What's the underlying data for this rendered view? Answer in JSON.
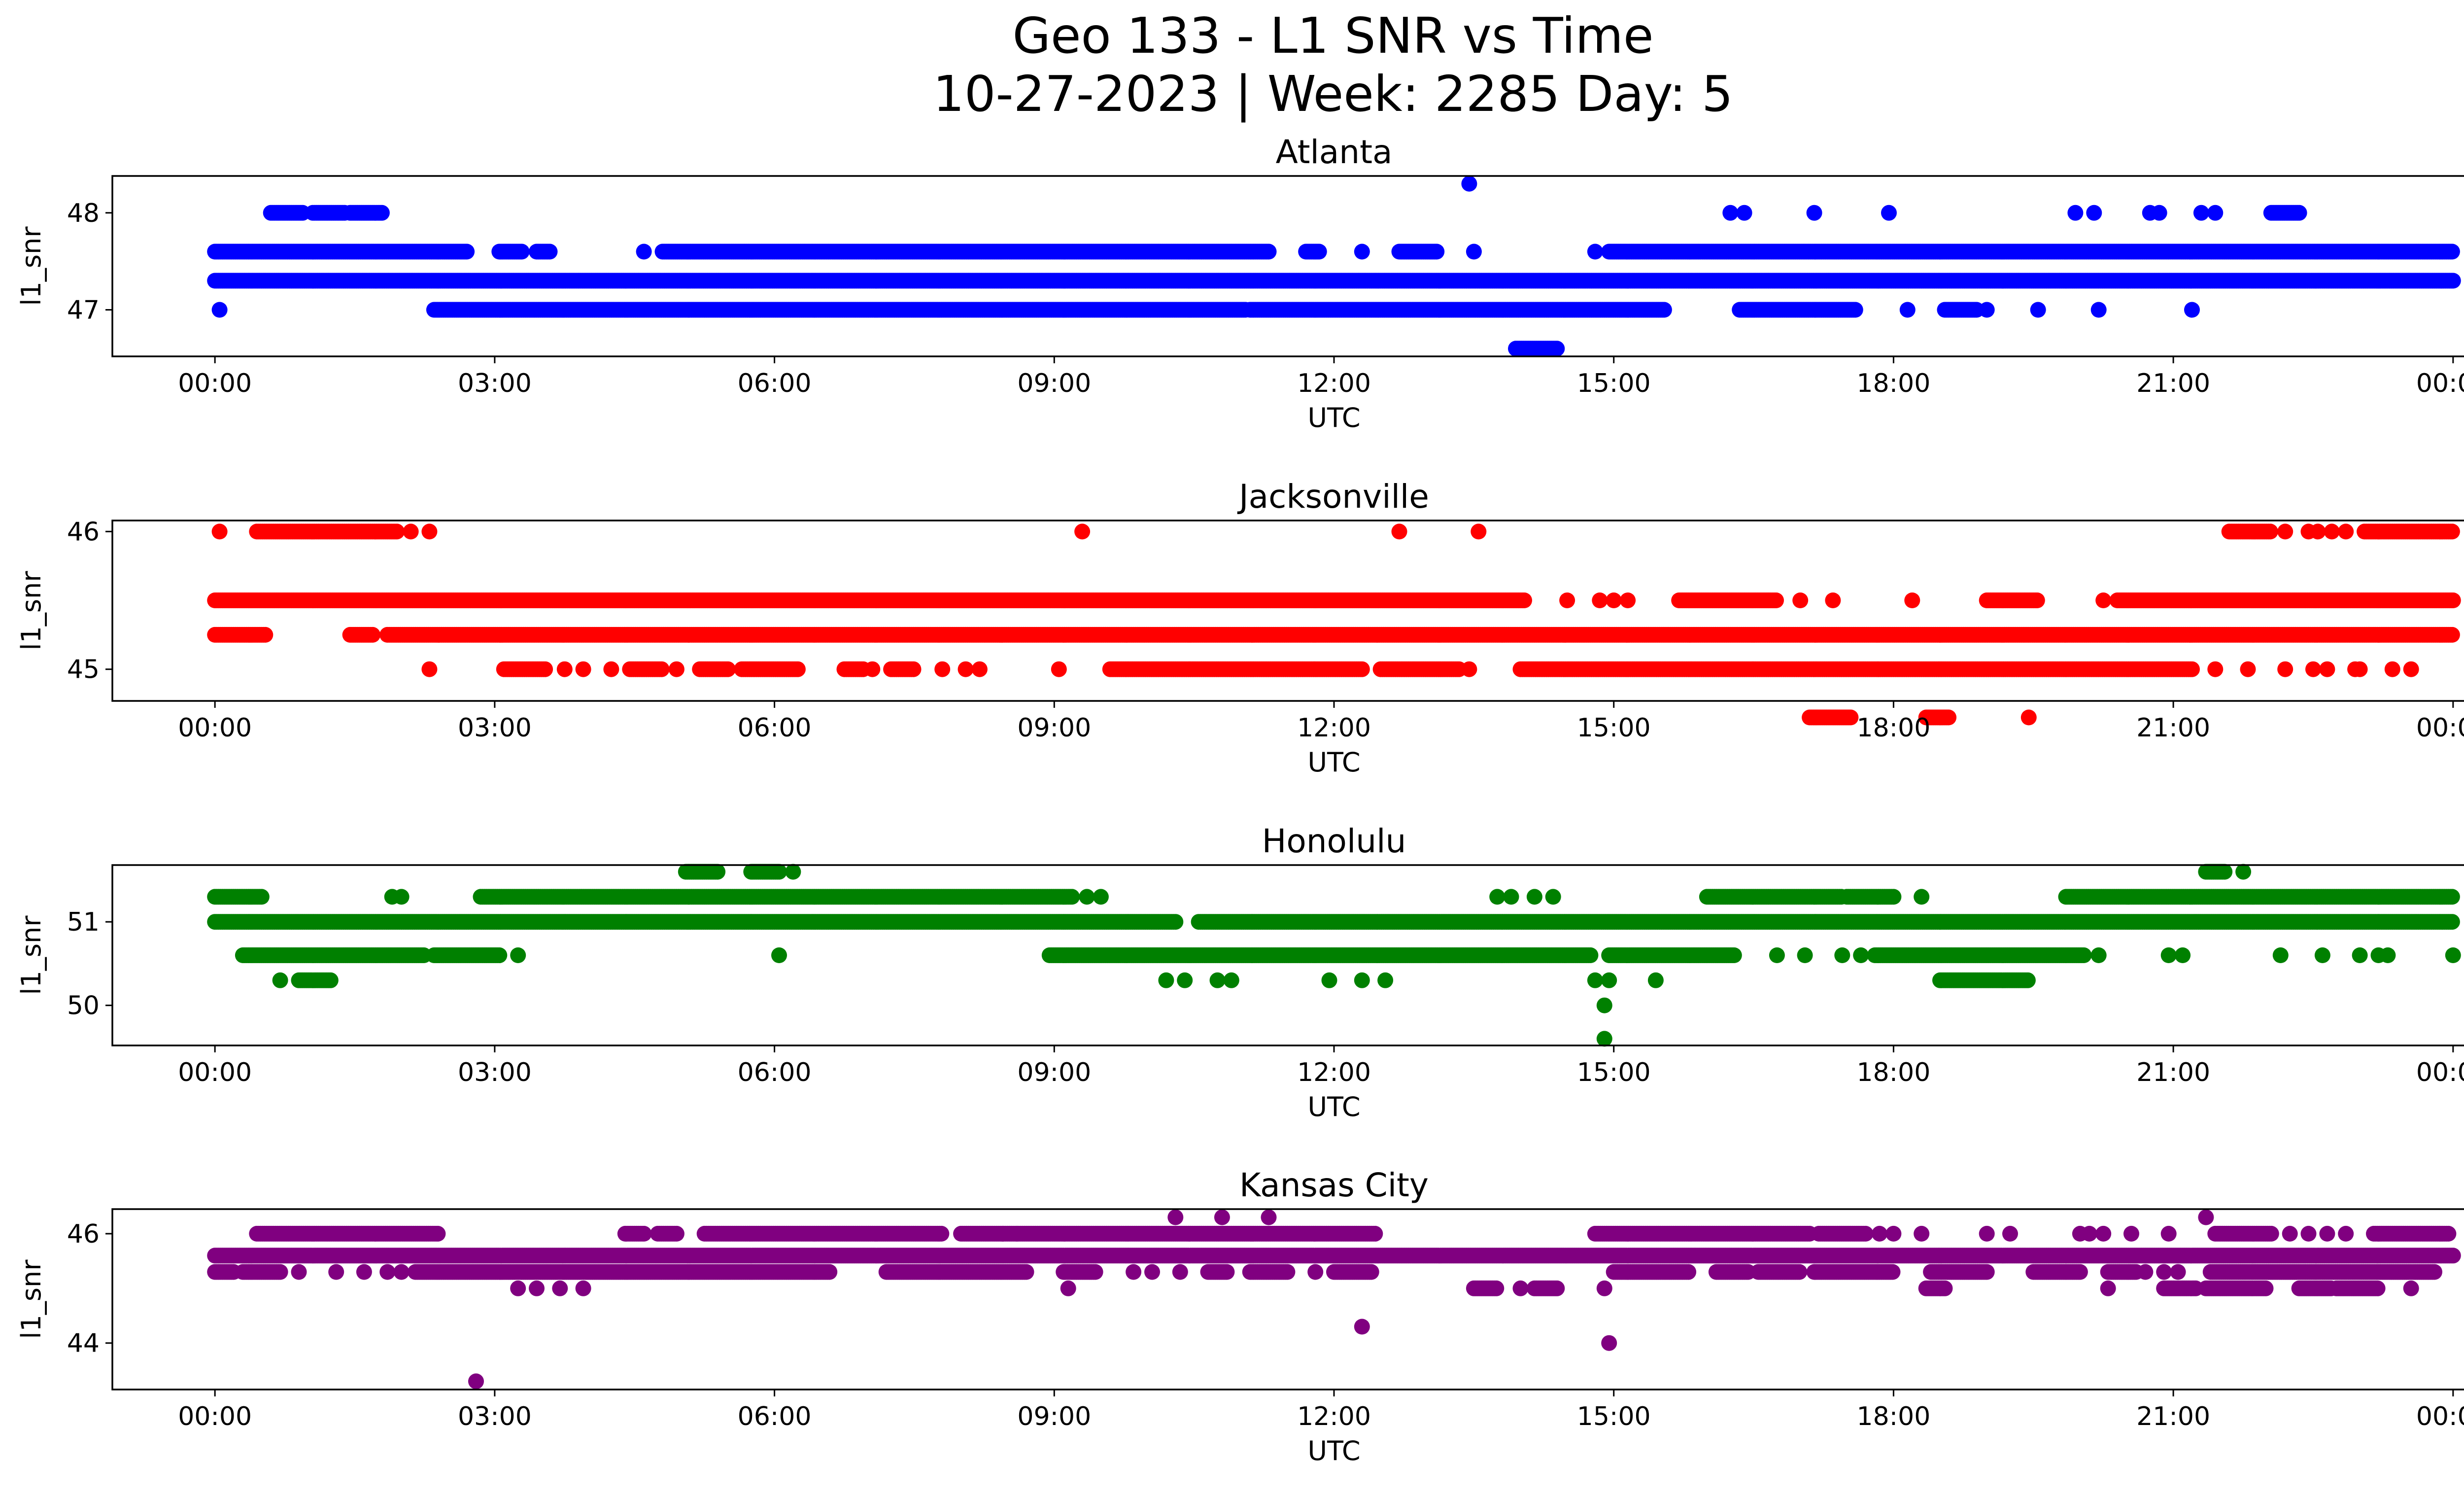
{
  "figure": {
    "title_line1": "Geo 133 - L1 SNR vs Time",
    "title_line2": "10-27-2023 | Week: 2285 Day: 5"
  },
  "chart_data": [
    {
      "type": "scatter",
      "title": "Atlanta",
      "xlabel": "UTC",
      "ylabel": "l1_snr",
      "color": "#0000ff",
      "xlim": [
        -1.1,
        25.1
      ],
      "ylim": [
        46.52,
        48.38
      ],
      "xticks": [
        0,
        3,
        6,
        9,
        12,
        15,
        18,
        21,
        24
      ],
      "xtick_labels": [
        "00:00",
        "03:00",
        "06:00",
        "09:00",
        "12:00",
        "15:00",
        "18:00",
        "21:00",
        "00:00"
      ],
      "yticks": [
        47,
        48
      ],
      "ytick_labels": [
        "47",
        "48"
      ],
      "series": [
        {
          "y": 47.3,
          "ranges": [
            [
              0.0,
              24.0
            ]
          ],
          "points": []
        },
        {
          "y": 47.6,
          "ranges": [
            [
              0.0,
              2.7
            ],
            [
              3.05,
              3.3
            ],
            [
              3.45,
              3.6
            ],
            [
              4.8,
              11.3
            ],
            [
              11.7,
              11.85
            ],
            [
              12.7,
              13.1
            ],
            [
              14.95,
              24.0
            ]
          ],
          "points": [
            4.6,
            12.3,
            13.5,
            14.8
          ]
        },
        {
          "y": 47.0,
          "ranges": [
            [
              2.35,
              11.05
            ],
            [
              11.1,
              15.55
            ],
            [
              16.35,
              17.6
            ],
            [
              18.55,
              18.9
            ]
          ],
          "points": [
            0.05,
            18.15,
            19.0,
            19.55,
            20.2,
            21.2
          ]
        },
        {
          "y": 48.0,
          "ranges": [
            [
              0.6,
              0.95
            ],
            [
              1.05,
              1.4
            ],
            [
              1.45,
              1.8
            ],
            [
              22.05,
              22.35
            ]
          ],
          "points": [
            16.25,
            16.4,
            17.15,
            17.95,
            19.95,
            20.15,
            20.75,
            20.85,
            21.3,
            21.45
          ]
        },
        {
          "y": 46.6,
          "ranges": [
            [
              13.95,
              14.4
            ]
          ],
          "points": []
        },
        {
          "y": 48.3,
          "ranges": [],
          "points": [
            13.45
          ]
        }
      ]
    },
    {
      "type": "scatter",
      "title": "Jacksonville",
      "xlabel": "UTC",
      "ylabel": "l1_snr",
      "color": "#ff0000",
      "xlim": [
        -1.1,
        25.1
      ],
      "ylim": [
        44.77,
        46.08
      ],
      "xticks": [
        0,
        3,
        6,
        9,
        12,
        15,
        18,
        21,
        24
      ],
      "xtick_labels": [
        "00:00",
        "03:00",
        "06:00",
        "09:00",
        "12:00",
        "15:00",
        "18:00",
        "21:00",
        "00:00"
      ],
      "yticks": [
        45,
        46
      ],
      "ytick_labels": [
        "45",
        "46"
      ],
      "series": [
        {
          "y": 45.5,
          "ranges": [
            [
              0.0,
              14.05
            ],
            [
              15.7,
              16.75
            ],
            [
              19.0,
              19.55
            ],
            [
              20.4,
              24.0
            ]
          ],
          "points": [
            14.5,
            14.85,
            15.0,
            15.15,
            17.0,
            17.35,
            18.2,
            20.25
          ]
        },
        {
          "y": 45.25,
          "ranges": [
            [
              0.0,
              0.55
            ],
            [
              1.45,
              1.7
            ],
            [
              1.85,
              24.0
            ]
          ],
          "points": []
        },
        {
          "y": 45.0,
          "ranges": [
            [
              3.1,
              3.55
            ],
            [
              4.45,
              4.8
            ],
            [
              5.2,
              5.5
            ],
            [
              5.65,
              6.25
            ],
            [
              6.75,
              6.95
            ],
            [
              7.25,
              7.5
            ],
            [
              9.6,
              12.3
            ],
            [
              12.5,
              13.35
            ],
            [
              14.0,
              21.2
            ]
          ],
          "points": [
            2.3,
            3.75,
            3.95,
            4.25,
            4.95,
            7.05,
            7.8,
            8.05,
            8.2,
            9.05,
            13.45,
            21.45,
            21.8,
            22.2,
            22.5,
            22.65,
            22.95,
            23.0,
            23.35,
            23.55
          ]
        },
        {
          "y": 46.0,
          "ranges": [
            [
              0.45,
              1.95
            ],
            [
              21.6,
              22.05
            ],
            [
              23.05,
              24.0
            ]
          ],
          "points": [
            0.05,
            2.1,
            2.3,
            9.3,
            12.7,
            13.55,
            22.2,
            22.45,
            22.55,
            22.7,
            22.85
          ]
        },
        {
          "y": 44.65,
          "ranges": [
            [
              17.1,
              17.55
            ],
            [
              18.35,
              18.6
            ]
          ],
          "points": [
            19.45
          ]
        }
      ]
    },
    {
      "type": "scatter",
      "title": "Honolulu",
      "xlabel": "UTC",
      "ylabel": "l1_snr",
      "color": "#008000",
      "xlim": [
        -1.1,
        25.1
      ],
      "ylim": [
        49.52,
        51.68
      ],
      "xticks": [
        0,
        3,
        6,
        9,
        12,
        15,
        18,
        21,
        24
      ],
      "xtick_labels": [
        "00:00",
        "03:00",
        "06:00",
        "09:00",
        "12:00",
        "15:00",
        "18:00",
        "21:00",
        "00:00"
      ],
      "yticks": [
        50,
        51
      ],
      "ytick_labels": [
        "50",
        "51"
      ],
      "series": [
        {
          "y": 51.0,
          "ranges": [
            [
              0.0,
              10.3
            ],
            [
              10.55,
              24.0
            ]
          ],
          "points": []
        },
        {
          "y": 51.3,
          "ranges": [
            [
              0.0,
              0.5
            ],
            [
              2.85,
              9.2
            ],
            [
              16.0,
              17.45
            ],
            [
              17.5,
              18.0
            ],
            [
              19.85,
              24.0
            ]
          ],
          "points": [
            1.9,
            2.0,
            9.35,
            9.5,
            13.75,
            13.9,
            14.15,
            14.35,
            18.3
          ]
        },
        {
          "y": 50.6,
          "ranges": [
            [
              0.3,
              2.25
            ],
            [
              2.35,
              3.05
            ],
            [
              8.95,
              14.75
            ],
            [
              14.95,
              16.3
            ],
            [
              17.8,
              20.05
            ]
          ],
          "points": [
            3.25,
            6.05,
            16.75,
            17.05,
            17.45,
            17.65,
            20.2,
            20.95,
            21.1,
            22.15,
            22.6,
            23.0,
            23.2,
            23.3,
            24.0
          ]
        },
        {
          "y": 50.3,
          "ranges": [
            [
              0.9,
              1.25
            ],
            [
              18.5,
              19.45
            ]
          ],
          "points": [
            0.7,
            10.2,
            10.4,
            10.75,
            10.9,
            11.95,
            12.3,
            12.55,
            14.8,
            14.95,
            15.45
          ]
        },
        {
          "y": 51.6,
          "ranges": [
            [
              5.05,
              5.4
            ],
            [
              5.75,
              6.05
            ],
            [
              21.35,
              21.55
            ]
          ],
          "points": [
            6.2,
            21.75
          ]
        },
        {
          "y": 50.0,
          "ranges": [],
          "points": [
            14.9
          ]
        },
        {
          "y": 49.6,
          "ranges": [],
          "points": [
            14.9
          ]
        }
      ]
    },
    {
      "type": "scatter",
      "title": "Kansas City",
      "xlabel": "UTC",
      "ylabel": "l1_snr",
      "color": "#800080",
      "xlim": [
        -1.1,
        25.1
      ],
      "ylim": [
        43.15,
        46.45
      ],
      "xticks": [
        0,
        3,
        6,
        9,
        12,
        15,
        18,
        21,
        24
      ],
      "xtick_labels": [
        "00:00",
        "03:00",
        "06:00",
        "09:00",
        "12:00",
        "15:00",
        "18:00",
        "21:00",
        "00:00"
      ],
      "yticks": [
        44,
        46
      ],
      "ytick_labels": [
        "44",
        "46"
      ],
      "series": [
        {
          "y": 45.6,
          "ranges": [
            [
              0.0,
              24.0
            ]
          ],
          "points": []
        },
        {
          "y": 45.3,
          "ranges": [
            [
              0.0,
              0.2
            ],
            [
              0.3,
              0.7
            ],
            [
              2.15,
              6.6
            ],
            [
              7.2,
              8.7
            ],
            [
              9.1,
              9.45
            ],
            [
              10.65,
              10.85
            ],
            [
              11.1,
              11.5
            ],
            [
              12.0,
              12.4
            ],
            [
              15.0,
              15.8
            ],
            [
              16.1,
              16.45
            ],
            [
              16.55,
              17.0
            ],
            [
              17.15,
              18.0
            ],
            [
              18.4,
              19.0
            ],
            [
              19.5,
              20.0
            ],
            [
              20.3,
              20.6
            ],
            [
              21.4,
              23.8
            ]
          ],
          "points": [
            0.9,
            1.3,
            1.6,
            1.85,
            2.0,
            9.85,
            10.05,
            10.35,
            11.8,
            20.7,
            20.9,
            21.05
          ]
        },
        {
          "y": 45.0,
          "ranges": [
            [
              13.5,
              13.75
            ],
            [
              14.15,
              14.4
            ],
            [
              18.35,
              18.55
            ],
            [
              20.9,
              21.25
            ],
            [
              21.35,
              22.0
            ],
            [
              22.35,
              22.7
            ],
            [
              22.75,
              23.2
            ]
          ],
          "points": [
            3.25,
            3.45,
            3.7,
            3.95,
            9.15,
            14.0,
            14.9,
            20.3,
            23.55
          ]
        },
        {
          "y": 46.0,
          "ranges": [
            [
              0.45,
              2.4
            ],
            [
              4.4,
              4.6
            ],
            [
              4.75,
              4.95
            ],
            [
              5.25,
              7.8
            ],
            [
              8.0,
              12.45
            ],
            [
              14.8,
              17.1
            ],
            [
              17.2,
              17.7
            ],
            [
              21.45,
              22.05
            ],
            [
              23.15,
              23.95
            ]
          ],
          "points": [
            8.45,
            8.6,
            17.85,
            18.0,
            18.3,
            19.0,
            19.25,
            20.0,
            20.1,
            20.25,
            20.55,
            20.95,
            22.25,
            22.45,
            22.65,
            22.85
          ]
        },
        {
          "y": 46.3,
          "ranges": [],
          "points": [
            10.3,
            10.8,
            11.3,
            21.35
          ]
        },
        {
          "y": 44.3,
          "ranges": [],
          "points": [
            12.3
          ]
        },
        {
          "y": 44.0,
          "ranges": [],
          "points": [
            14.95
          ]
        },
        {
          "y": 43.3,
          "ranges": [],
          "points": [
            2.8
          ]
        }
      ]
    }
  ]
}
